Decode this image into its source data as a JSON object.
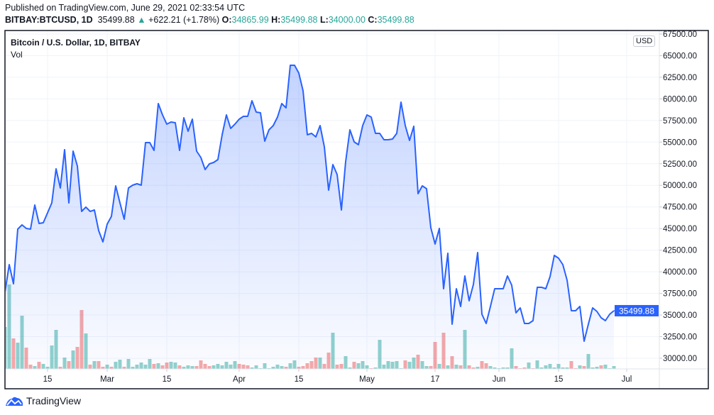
{
  "header": {
    "published": "Published on TradingView.com, June 29, 2021 02:33:54 UTC",
    "symbol": "BITBAY:BTCUSD, 1D",
    "last": "35499.88",
    "change_arrow": "▲",
    "change": "+622.21 (+1.78%)",
    "o_label": "O:",
    "o_value": "34865.99",
    "h_label": "H:",
    "h_value": "35499.88",
    "l_label": "L:",
    "l_value": "34000.00",
    "c_label": "C:",
    "c_value": "35499.88"
  },
  "legend": {
    "title": "Bitcoin / U.S. Dollar, 1D, BITBAY",
    "vol": "Vol"
  },
  "currency_badge": "USD",
  "footer": {
    "brand": "TradingView",
    "logo_icon": "tradingview-cloud-icon"
  },
  "colors": {
    "line": "#2962ff",
    "up": "#26a69a",
    "down": "#ef5350",
    "price_label_bg": "#2962ff"
  },
  "chart_data": {
    "type": "area",
    "series_fields": [
      "date",
      "close",
      "volume_relative",
      "direction"
    ],
    "ylim": [
      29500,
      67900
    ],
    "grid": true,
    "current_price": 35499.88,
    "current_price_label": "35499.88",
    "y_ticks": [
      "30000.00",
      "32500.00",
      "35000.00",
      "37500.00",
      "40000.00",
      "42500.00",
      "45000.00",
      "47500.00",
      "50000.00",
      "52500.00",
      "55000.00",
      "57500.00",
      "60000.00",
      "62500.00",
      "65000.00",
      "67500.00"
    ],
    "x_ticks": [
      {
        "label": "15",
        "date": "2021-02-15"
      },
      {
        "label": "Mar",
        "date": "2021-03-01"
      },
      {
        "label": "15",
        "date": "2021-03-15"
      },
      {
        "label": "Apr",
        "date": "2021-04-01"
      },
      {
        "label": "15",
        "date": "2021-04-15"
      },
      {
        "label": "May",
        "date": "2021-05-01"
      },
      {
        "label": "17",
        "date": "2021-05-17"
      },
      {
        "label": "Jun",
        "date": "2021-06-01"
      },
      {
        "label": "15",
        "date": "2021-06-15"
      },
      {
        "label": "Jul",
        "date": "2021-07-01"
      }
    ],
    "points": [
      [
        "2021-02-05",
        37631,
        59,
        "u"
      ],
      [
        "2021-02-06",
        40831,
        119,
        "u"
      ],
      [
        "2021-02-07",
        38615,
        43,
        "d"
      ],
      [
        "2021-02-08",
        44933,
        37,
        "u"
      ],
      [
        "2021-02-09",
        45425,
        75,
        "u"
      ],
      [
        "2021-02-10",
        45015,
        30,
        "d"
      ],
      [
        "2021-02-11",
        44933,
        6,
        "d"
      ],
      [
        "2021-02-12",
        47723,
        4,
        "u"
      ],
      [
        "2021-02-13",
        45590,
        10,
        "d"
      ],
      [
        "2021-02-14",
        45672,
        7,
        "u"
      ],
      [
        "2021-02-15",
        46820,
        3,
        "u"
      ],
      [
        "2021-02-16",
        47969,
        33,
        "u"
      ],
      [
        "2021-02-17",
        51907,
        55,
        "u"
      ],
      [
        "2021-02-18",
        49692,
        3,
        "d"
      ],
      [
        "2021-02-19",
        54123,
        16,
        "u"
      ],
      [
        "2021-02-20",
        47969,
        11,
        "d"
      ],
      [
        "2021-02-21",
        53959,
        26,
        "u"
      ],
      [
        "2021-02-22",
        52236,
        31,
        "d"
      ],
      [
        "2021-02-23",
        46984,
        83,
        "d"
      ],
      [
        "2021-02-24",
        47477,
        50,
        "u"
      ],
      [
        "2021-02-25",
        46984,
        6,
        "d"
      ],
      [
        "2021-02-26",
        47148,
        11,
        "u"
      ],
      [
        "2021-02-27",
        44769,
        11,
        "d"
      ],
      [
        "2021-02-28",
        43456,
        3,
        "d"
      ],
      [
        "2021-03-01",
        45507,
        6,
        "u"
      ],
      [
        "2021-03-02",
        46410,
        3,
        "d"
      ],
      [
        "2021-03-03",
        49938,
        10,
        "u"
      ],
      [
        "2021-03-04",
        47969,
        13,
        "u"
      ],
      [
        "2021-03-05",
        46082,
        3,
        "d"
      ],
      [
        "2021-03-06",
        49692,
        14,
        "u"
      ],
      [
        "2021-03-07",
        50020,
        3,
        "u"
      ],
      [
        "2021-03-08",
        50184,
        6,
        "u"
      ],
      [
        "2021-03-09",
        50020,
        9,
        "u"
      ],
      [
        "2021-03-10",
        54943,
        6,
        "u"
      ],
      [
        "2021-03-11",
        54943,
        14,
        "u"
      ],
      [
        "2021-03-12",
        54041,
        7,
        "d"
      ],
      [
        "2021-03-13",
        59456,
        8,
        "u"
      ],
      [
        "2021-03-14",
        58143,
        5,
        "d"
      ],
      [
        "2021-03-15",
        57077,
        9,
        "d"
      ],
      [
        "2021-03-16",
        57323,
        10,
        "u"
      ],
      [
        "2021-03-17",
        57241,
        9,
        "u"
      ],
      [
        "2021-03-18",
        54041,
        5,
        "d"
      ],
      [
        "2021-03-19",
        57815,
        3,
        "u"
      ],
      [
        "2021-03-20",
        56256,
        5,
        "u"
      ],
      [
        "2021-03-21",
        57651,
        4,
        "u"
      ],
      [
        "2021-03-22",
        53959,
        4,
        "d"
      ],
      [
        "2021-03-23",
        53220,
        12,
        "d"
      ],
      [
        "2021-03-24",
        51825,
        7,
        "d"
      ],
      [
        "2021-03-25",
        52482,
        4,
        "d"
      ],
      [
        "2021-03-26",
        52646,
        5,
        "u"
      ],
      [
        "2021-03-27",
        52974,
        7,
        "u"
      ],
      [
        "2021-03-28",
        55846,
        5,
        "u"
      ],
      [
        "2021-03-29",
        58143,
        10,
        "u"
      ],
      [
        "2021-03-30",
        56584,
        6,
        "u"
      ],
      [
        "2021-03-31",
        57077,
        11,
        "u"
      ],
      [
        "2021-04-01",
        57651,
        7,
        "d"
      ],
      [
        "2021-04-02",
        57979,
        6,
        "d"
      ],
      [
        "2021-04-03",
        57979,
        5,
        "d"
      ],
      [
        "2021-04-04",
        59784,
        2,
        "u"
      ],
      [
        "2021-04-05",
        58471,
        5,
        "u"
      ],
      [
        "2021-04-06",
        58389,
        1,
        "u"
      ],
      [
        "2021-04-07",
        55107,
        8,
        "u"
      ],
      [
        "2021-04-08",
        56420,
        1,
        "u"
      ],
      [
        "2021-04-09",
        56912,
        3,
        "u"
      ],
      [
        "2021-04-10",
        57897,
        6,
        "u"
      ],
      [
        "2021-04-11",
        59456,
        4,
        "u"
      ],
      [
        "2021-04-12",
        58964,
        3,
        "d"
      ],
      [
        "2021-04-13",
        63887,
        8,
        "u"
      ],
      [
        "2021-04-14",
        63887,
        12,
        "u"
      ],
      [
        "2021-04-15",
        62984,
        3,
        "d"
      ],
      [
        "2021-04-16",
        60933,
        4,
        "d"
      ],
      [
        "2021-04-17",
        55846,
        8,
        "d"
      ],
      [
        "2021-04-18",
        56010,
        11,
        "d"
      ],
      [
        "2021-04-19",
        55600,
        16,
        "d"
      ],
      [
        "2021-04-20",
        56912,
        16,
        "u"
      ],
      [
        "2021-04-21",
        54451,
        7,
        "d"
      ],
      [
        "2021-04-22",
        49446,
        23,
        "d"
      ],
      [
        "2021-04-23",
        52400,
        51,
        "u"
      ],
      [
        "2021-04-24",
        51251,
        6,
        "d"
      ],
      [
        "2021-04-25",
        47148,
        7,
        "d"
      ],
      [
        "2021-04-26",
        52728,
        18,
        "u"
      ],
      [
        "2021-04-27",
        56420,
        2,
        "u"
      ],
      [
        "2021-04-28",
        55025,
        10,
        "d"
      ],
      [
        "2021-04-29",
        54697,
        8,
        "u"
      ],
      [
        "2021-04-30",
        56912,
        11,
        "u"
      ],
      [
        "2021-05-01",
        58143,
        5,
        "u"
      ],
      [
        "2021-05-02",
        57897,
        1,
        "d"
      ],
      [
        "2021-05-03",
        56010,
        2,
        "u"
      ],
      [
        "2021-05-04",
        56010,
        41,
        "u"
      ],
      [
        "2021-05-05",
        55271,
        6,
        "u"
      ],
      [
        "2021-05-06",
        55271,
        11,
        "u"
      ],
      [
        "2021-05-07",
        55353,
        10,
        "u"
      ],
      [
        "2021-05-08",
        56010,
        11,
        "u"
      ],
      [
        "2021-05-09",
        59620,
        1,
        "u"
      ],
      [
        "2021-05-10",
        56912,
        12,
        "d"
      ],
      [
        "2021-05-11",
        55189,
        10,
        "u"
      ],
      [
        "2021-05-12",
        56830,
        16,
        "u"
      ],
      [
        "2021-05-13",
        49036,
        20,
        "d"
      ],
      [
        "2021-05-14",
        49938,
        11,
        "u"
      ],
      [
        "2021-05-15",
        49610,
        4,
        "u"
      ],
      [
        "2021-05-16",
        45097,
        4,
        "d"
      ],
      [
        "2021-05-17",
        43210,
        38,
        "d"
      ],
      [
        "2021-05-18",
        45015,
        7,
        "u"
      ],
      [
        "2021-05-19",
        38041,
        51,
        "d"
      ],
      [
        "2021-05-20",
        42143,
        5,
        "u"
      ],
      [
        "2021-05-21",
        33938,
        18,
        "d"
      ],
      [
        "2021-05-22",
        38041,
        6,
        "u"
      ],
      [
        "2021-05-23",
        35990,
        5,
        "d"
      ],
      [
        "2021-05-24",
        39518,
        55,
        "u"
      ],
      [
        "2021-05-25",
        36646,
        5,
        "d"
      ],
      [
        "2021-05-26",
        38533,
        2,
        "d"
      ],
      [
        "2021-05-27",
        42225,
        3,
        "u"
      ],
      [
        "2021-05-28",
        35087,
        11,
        "d"
      ],
      [
        "2021-05-29",
        34020,
        8,
        "d"
      ],
      [
        "2021-05-30",
        35990,
        4,
        "u"
      ],
      [
        "2021-05-31",
        38041,
        2,
        "u"
      ],
      [
        "2021-06-01",
        38041,
        1,
        "u"
      ],
      [
        "2021-06-02",
        38041,
        2,
        "u"
      ],
      [
        "2021-06-03",
        39518,
        2,
        "u"
      ],
      [
        "2021-06-04",
        38451,
        29,
        "u"
      ],
      [
        "2021-06-05",
        35251,
        4,
        "d"
      ],
      [
        "2021-06-06",
        35826,
        1,
        "d"
      ],
      [
        "2021-06-07",
        34020,
        2,
        "d"
      ],
      [
        "2021-06-08",
        34020,
        9,
        "u"
      ],
      [
        "2021-06-09",
        34349,
        1,
        "d"
      ],
      [
        "2021-06-10",
        38205,
        12,
        "u"
      ],
      [
        "2021-06-11",
        38205,
        2,
        "u"
      ],
      [
        "2021-06-12",
        38041,
        5,
        "u"
      ],
      [
        "2021-06-13",
        39436,
        7,
        "u"
      ],
      [
        "2021-06-14",
        41897,
        2,
        "u"
      ],
      [
        "2021-06-15",
        41569,
        7,
        "u"
      ],
      [
        "2021-06-16",
        40831,
        2,
        "u"
      ],
      [
        "2021-06-17",
        39026,
        2,
        "u"
      ],
      [
        "2021-06-18",
        35497,
        11,
        "d"
      ],
      [
        "2021-06-19",
        35497,
        1,
        "d"
      ],
      [
        "2021-06-20",
        35990,
        5,
        "u"
      ],
      [
        "2021-06-21",
        31969,
        4,
        "d"
      ],
      [
        "2021-06-22",
        33938,
        21,
        "u"
      ],
      [
        "2021-06-23",
        35826,
        2,
        "u"
      ],
      [
        "2021-06-24",
        35415,
        3,
        "u"
      ],
      [
        "2021-06-25",
        34677,
        5,
        "d"
      ],
      [
        "2021-06-26",
        34349,
        6,
        "u"
      ],
      [
        "2021-06-27",
        35087,
        1,
        "u"
      ],
      [
        "2021-06-28",
        35499.88,
        4,
        "u"
      ]
    ]
  }
}
